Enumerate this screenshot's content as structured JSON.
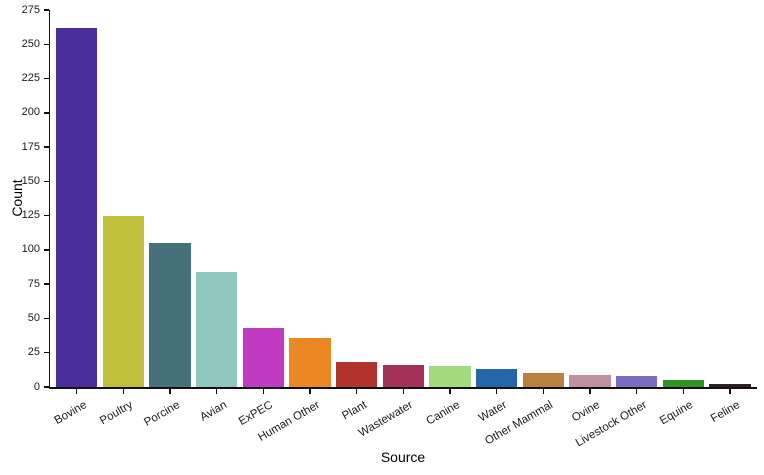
{
  "chart_data": {
    "type": "bar",
    "xlabel": "Source",
    "ylabel": "Count",
    "categories": [
      "Bovine",
      "Poultry",
      "Porcine",
      "Avian",
      "ExPEC",
      "Human Other",
      "Plant",
      "Wastewater",
      "Canine",
      "Water",
      "Other Mammal",
      "Ovine",
      "Livestock Other",
      "Equine",
      "Feline"
    ],
    "values": [
      262,
      125,
      105,
      84,
      43,
      36,
      18,
      16,
      15,
      13,
      10,
      9,
      8,
      5,
      2
    ],
    "bar_colors": [
      "#4B2D9B",
      "#C2BF3C",
      "#47717A",
      "#90C8BF",
      "#C13AC2",
      "#EC8823",
      "#B2332C",
      "#A43158",
      "#A4DA7F",
      "#2366A9",
      "#B8833F",
      "#C18FA2",
      "#7C6CC1",
      "#2F9323",
      "#2A2026"
    ],
    "ylim": [
      0,
      275
    ],
    "yticks": [
      0,
      25,
      50,
      75,
      100,
      125,
      150,
      175,
      200,
      225,
      250,
      275
    ],
    "grid": false,
    "legend_position": "none",
    "background_color": "#FFFFFF",
    "axis_color": "#101010",
    "tick_label_color": "#1A1A1A",
    "x_tick_angle_deg": 30
  }
}
